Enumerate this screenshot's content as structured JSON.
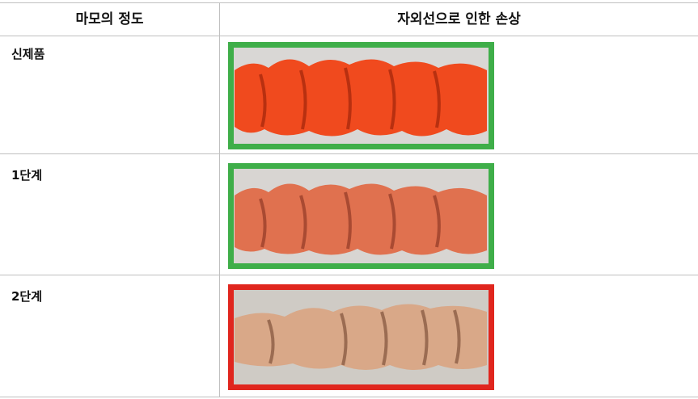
{
  "table": {
    "header": [
      "마모의 정도",
      "자외선으로 인한 손상"
    ],
    "rows": [
      [
        "신제품"
      ],
      [
        "1단계"
      ],
      [
        "2단계"
      ]
    ]
  }
}
